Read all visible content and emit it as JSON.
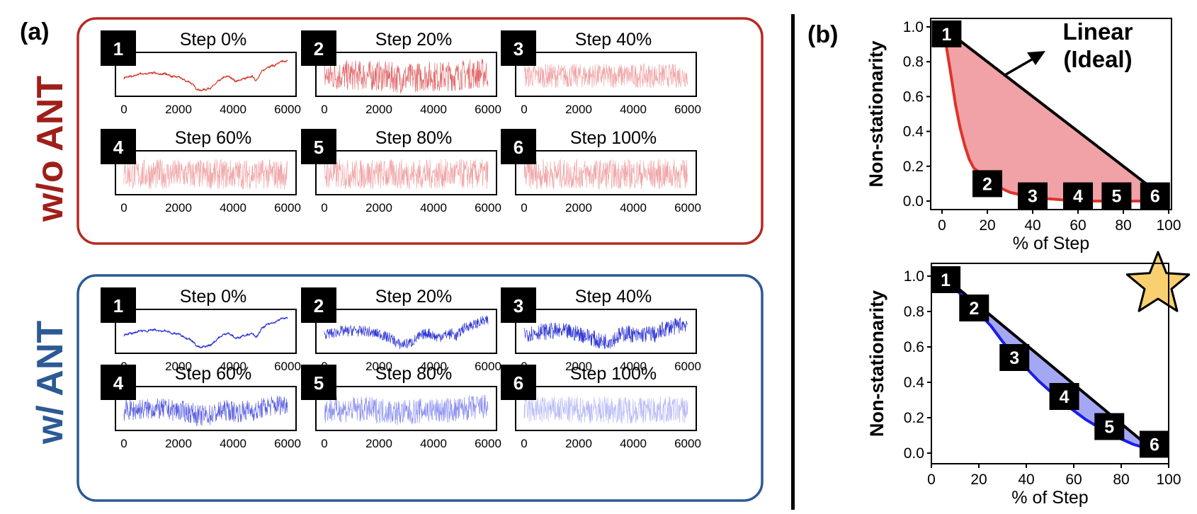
{
  "panel_a": {
    "label": "(a)",
    "groups": [
      {
        "name": "w/o ANT",
        "color": "#b52a22",
        "panels": [
          {
            "badge": "1",
            "title": "Step 0%"
          },
          {
            "badge": "2",
            "title": "Step 20%"
          },
          {
            "badge": "3",
            "title": "Step 40%"
          },
          {
            "badge": "4",
            "title": "Step 60%"
          },
          {
            "badge": "5",
            "title": "Step 80%"
          },
          {
            "badge": "6",
            "title": "Step 100%"
          }
        ]
      },
      {
        "name": "w/ ANT",
        "color": "#2c5a94",
        "panels": [
          {
            "badge": "1",
            "title": "Step 0%"
          },
          {
            "badge": "2",
            "title": "Step 20%"
          },
          {
            "badge": "3",
            "title": "Step 40%"
          },
          {
            "badge": "4",
            "title": "Step 60%"
          },
          {
            "badge": "5",
            "title": "Step 80%"
          },
          {
            "badge": "6",
            "title": "Step 100%"
          }
        ]
      }
    ],
    "xticks": [
      "0",
      "2000",
      "4000",
      "6000"
    ]
  },
  "panel_b": {
    "label": "(b)"
  },
  "chart_data": [
    {
      "type": "line",
      "title": "Step 0% … Step 100% (w/o ANT)",
      "x": [
        0,
        2000,
        4000,
        6000
      ],
      "xlim": [
        0,
        6000
      ],
      "series": [
        {
          "name": "Step 0%",
          "signal_weight": 1.0,
          "noise_level": 0.05,
          "color": "#d8382a"
        },
        {
          "name": "Step 20%",
          "signal_weight": 0.18,
          "noise_level": 1.0,
          "color": "#e0686a"
        },
        {
          "name": "Step 40%",
          "signal_weight": 0.0,
          "noise_level": 0.8,
          "color": "#f0a6a8"
        },
        {
          "name": "Step 60%",
          "signal_weight": 0.0,
          "noise_level": 1.0,
          "color": "#f0a6a8"
        },
        {
          "name": "Step 80%",
          "signal_weight": 0.0,
          "noise_level": 1.0,
          "color": "#f0a6a8"
        },
        {
          "name": "Step 100%",
          "signal_weight": 0.0,
          "noise_level": 1.0,
          "color": "#f0a6a8"
        }
      ]
    },
    {
      "type": "line",
      "title": "Step 0% … Step 100% (w/ ANT)",
      "x": [
        0,
        2000,
        4000,
        6000
      ],
      "xlim": [
        0,
        6000
      ],
      "series": [
        {
          "name": "Step 0%",
          "signal_weight": 1.0,
          "noise_level": 0.05,
          "color": "#2f36d6"
        },
        {
          "name": "Step 20%",
          "signal_weight": 0.8,
          "noise_level": 0.35,
          "color": "#2f36d6"
        },
        {
          "name": "Step 40%",
          "signal_weight": 0.6,
          "noise_level": 0.55,
          "color": "#2f36d6"
        },
        {
          "name": "Step 60%",
          "signal_weight": 0.4,
          "noise_level": 0.7,
          "color": "#5a5fe0"
        },
        {
          "name": "Step 80%",
          "signal_weight": 0.2,
          "noise_level": 0.85,
          "color": "#8b8ff0"
        },
        {
          "name": "Step 100%",
          "signal_weight": 0.0,
          "noise_level": 0.9,
          "color": "#b8baf6"
        }
      ]
    },
    {
      "type": "area",
      "xlabel": "% of Step",
      "ylabel": "Non-stationarity",
      "xlim": [
        0,
        100
      ],
      "ylim": [
        0,
        1.0
      ],
      "xticks": [
        "0",
        "20",
        "40",
        "60",
        "80",
        "100"
      ],
      "yticks": [
        "0.0",
        "0.2",
        "0.4",
        "0.6",
        "0.8",
        "1.0"
      ],
      "series": [
        {
          "name": "Linear",
          "color": "#000000",
          "x": [
            0,
            100
          ],
          "y": [
            1.0,
            0.0
          ]
        },
        {
          "name": "w/o ANT",
          "color": "#e0322a",
          "fill": "#f0a2a6",
          "x": [
            0,
            2,
            4,
            6,
            8,
            10,
            12,
            14,
            16,
            20,
            25,
            30,
            40,
            50,
            60,
            70,
            80,
            90,
            100
          ],
          "y": [
            1.0,
            0.88,
            0.72,
            0.55,
            0.42,
            0.32,
            0.24,
            0.19,
            0.17,
            0.12,
            0.08,
            0.05,
            0.02,
            0.01,
            0.0,
            0.0,
            0.0,
            0.0,
            0.0
          ]
        }
      ],
      "annotations": [
        {
          "text": "Linear",
          "line2": "(Ideal)"
        },
        {
          "badge": "1",
          "x": 2,
          "y": 0.96
        },
        {
          "badge": "2",
          "x": 20,
          "y": 0.1
        },
        {
          "badge": "3",
          "x": 40,
          "y": 0.03
        },
        {
          "badge": "4",
          "x": 60,
          "y": 0.03
        },
        {
          "badge": "5",
          "x": 77,
          "y": 0.03
        },
        {
          "badge": "6",
          "x": 94,
          "y": 0.03
        }
      ]
    },
    {
      "type": "area",
      "xlabel": "% of Step",
      "ylabel": "Non-stationarity",
      "xlim": [
        0,
        100
      ],
      "ylim": [
        0,
        1.0
      ],
      "xticks": [
        "0",
        "20",
        "40",
        "60",
        "80",
        "100"
      ],
      "yticks": [
        "0.0",
        "0.2",
        "0.4",
        "0.6",
        "0.8",
        "1.0"
      ],
      "series": [
        {
          "name": "Linear",
          "color": "#000000",
          "x": [
            5,
            95
          ],
          "y": [
            1.0,
            0.0
          ]
        },
        {
          "name": "w/ ANT",
          "color": "#1a1ee8",
          "fill": "#a4a8f4",
          "x": [
            5,
            10,
            15,
            20,
            25,
            30,
            35,
            40,
            45,
            50,
            55,
            60,
            65,
            70,
            75,
            80,
            85,
            90,
            95
          ],
          "y": [
            1.0,
            0.93,
            0.86,
            0.79,
            0.72,
            0.63,
            0.55,
            0.48,
            0.41,
            0.35,
            0.29,
            0.24,
            0.19,
            0.15,
            0.11,
            0.08,
            0.05,
            0.03,
            0.0
          ]
        }
      ],
      "annotations": [
        {
          "badge": "1",
          "x": 6,
          "y": 0.98
        },
        {
          "badge": "2",
          "x": 18,
          "y": 0.82
        },
        {
          "badge": "3",
          "x": 35,
          "y": 0.54
        },
        {
          "badge": "4",
          "x": 56,
          "y": 0.32
        },
        {
          "badge": "5",
          "x": 75,
          "y": 0.15
        },
        {
          "badge": "6",
          "x": 94,
          "y": 0.05
        }
      ],
      "star_color": "#f8d070"
    }
  ]
}
